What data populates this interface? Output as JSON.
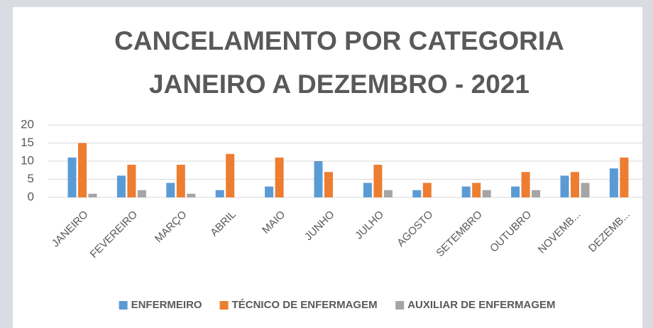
{
  "chart_data": {
    "type": "bar",
    "title": [
      "CANCELAMENTO POR CATEGORIA",
      "JANEIRO A DEZEMBRO - 2021"
    ],
    "categories": [
      "JANEIRO",
      "FEVEREIRO",
      "MARÇO",
      "ABRIL",
      "MAIO",
      "JUNHO",
      "JULHO",
      "AGOSTO",
      "SETEMBRO",
      "OUTUBRO",
      "NOVEMB...",
      "DEZEMB..."
    ],
    "series": [
      {
        "name": "ENFERMEIRO",
        "color": "#5b9bd5",
        "values": [
          11,
          6,
          4,
          2,
          3,
          10,
          4,
          2,
          3,
          3,
          6,
          8
        ]
      },
      {
        "name": "TÉCNICO DE ENFERMAGEM",
        "color": "#ed7d31",
        "values": [
          15,
          9,
          9,
          12,
          11,
          7,
          9,
          4,
          4,
          7,
          7,
          11
        ]
      },
      {
        "name": "AUXILIAR DE ENFERMAGEM",
        "color": "#a5a5a5",
        "values": [
          1,
          2,
          1,
          0,
          0,
          0,
          2,
          0,
          2,
          2,
          4,
          0
        ]
      }
    ],
    "ylim": [
      0,
      20
    ],
    "yticks": [
      0,
      5,
      10,
      15,
      20
    ],
    "grid": true,
    "legend": "bottom"
  }
}
